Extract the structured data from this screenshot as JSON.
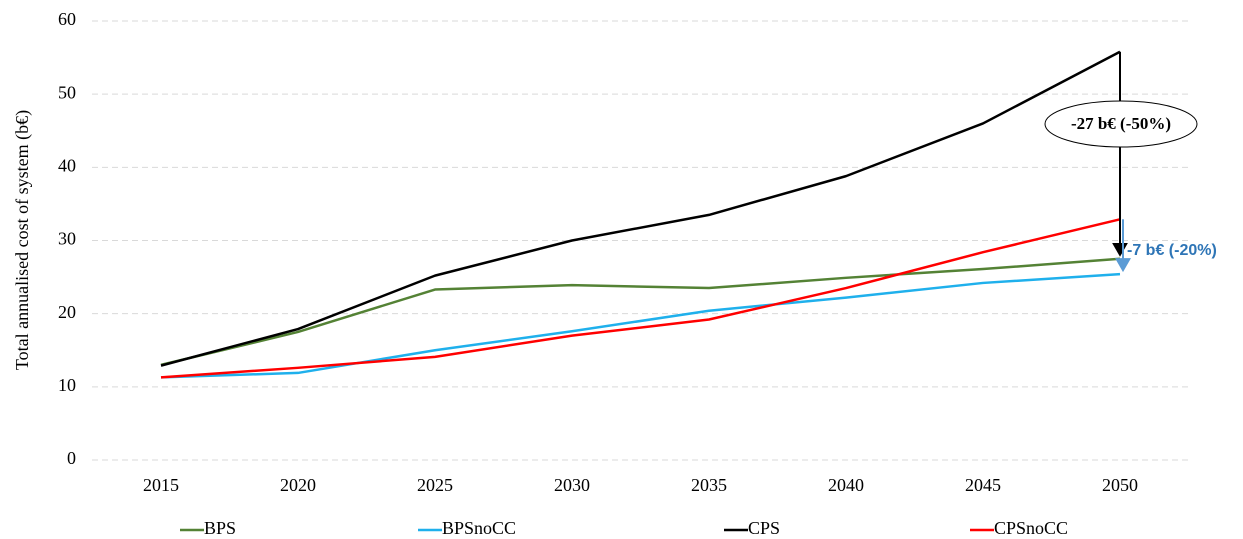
{
  "chart_data": {
    "type": "line",
    "y_label": "Total annualised cost of system (b€)",
    "categories": [
      "2015",
      "2020",
      "2025",
      "2030",
      "2035",
      "2040",
      "2045",
      "2050"
    ],
    "series": [
      {
        "name": "BPS",
        "color": "#548235",
        "values": [
          13,
          17.5,
          23.3,
          23.9,
          23.5,
          24.9,
          26.1,
          27.5
        ]
      },
      {
        "name": "BPSnoCC",
        "color": "#1fb0ec",
        "values": [
          11.3,
          11.9,
          15,
          17.6,
          20.4,
          22.2,
          24.2,
          25.4
        ]
      },
      {
        "name": "CPS",
        "color": "#000000",
        "values": [
          12.9,
          17.9,
          25.2,
          30,
          33.5,
          38.8,
          46,
          55.8
        ]
      },
      {
        "name": "CPSnoCC",
        "color": "#ff0000",
        "values": [
          11.3,
          12.6,
          14.1,
          17,
          19.2,
          23.5,
          28.4,
          32.9
        ]
      }
    ],
    "annotations": [
      "-27 b€ (-50%)",
      "-7 b€ (-20%)"
    ],
    "ylim": [
      0,
      60
    ],
    "yticks": [
      0,
      10,
      20,
      30,
      40,
      50,
      60
    ],
    "grid": true,
    "legend": "bottom"
  }
}
